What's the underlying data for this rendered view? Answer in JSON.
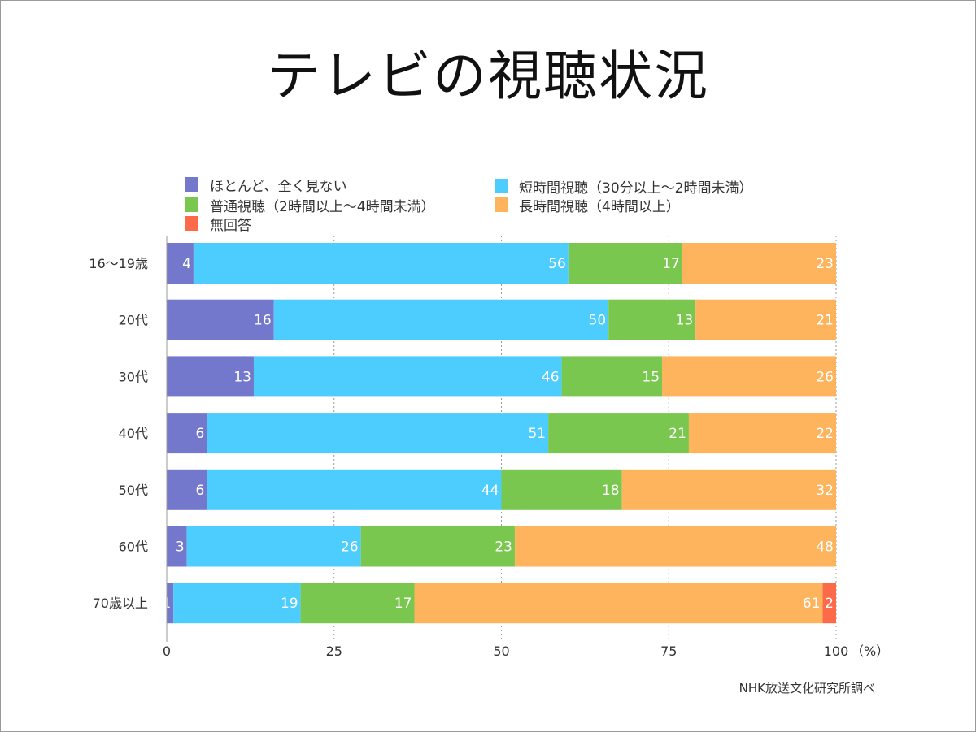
{
  "title": "テレビの視聴状況",
  "source": "NHK放送文化研究所調べ",
  "chart_data": {
    "type": "bar",
    "orientation": "horizontal",
    "stacked": true,
    "categories": [
      "16〜19歳",
      "20代",
      "30代",
      "40代",
      "50代",
      "60代",
      "70歳以上"
    ],
    "series": [
      {
        "name": "ほとんど、全く見ない",
        "color": "#7478cc",
        "values": [
          4,
          16,
          13,
          6,
          6,
          3,
          1
        ]
      },
      {
        "name": "短時間視聴（30分以上〜2時間未満）",
        "color": "#4dcdfd",
        "values": [
          56,
          50,
          46,
          51,
          44,
          26,
          19
        ]
      },
      {
        "name": "普通視聴（2時間以上〜4時間未満）",
        "color": "#7ac74f",
        "values": [
          17,
          13,
          15,
          21,
          18,
          23,
          17
        ]
      },
      {
        "name": "長時間視聴（4時間以上）",
        "color": "#feb35d",
        "values": [
          23,
          21,
          26,
          22,
          32,
          48,
          61
        ]
      },
      {
        "name": "無回答",
        "color": "#fd6a4a",
        "values": [
          0,
          0,
          0,
          0,
          0,
          0,
          2
        ]
      }
    ],
    "xlim": [
      0,
      100
    ],
    "xticks": [
      "0",
      "25",
      "50",
      "75",
      "100"
    ],
    "xunit": "（%）",
    "grid": "vertical dotted",
    "legend": "top"
  }
}
